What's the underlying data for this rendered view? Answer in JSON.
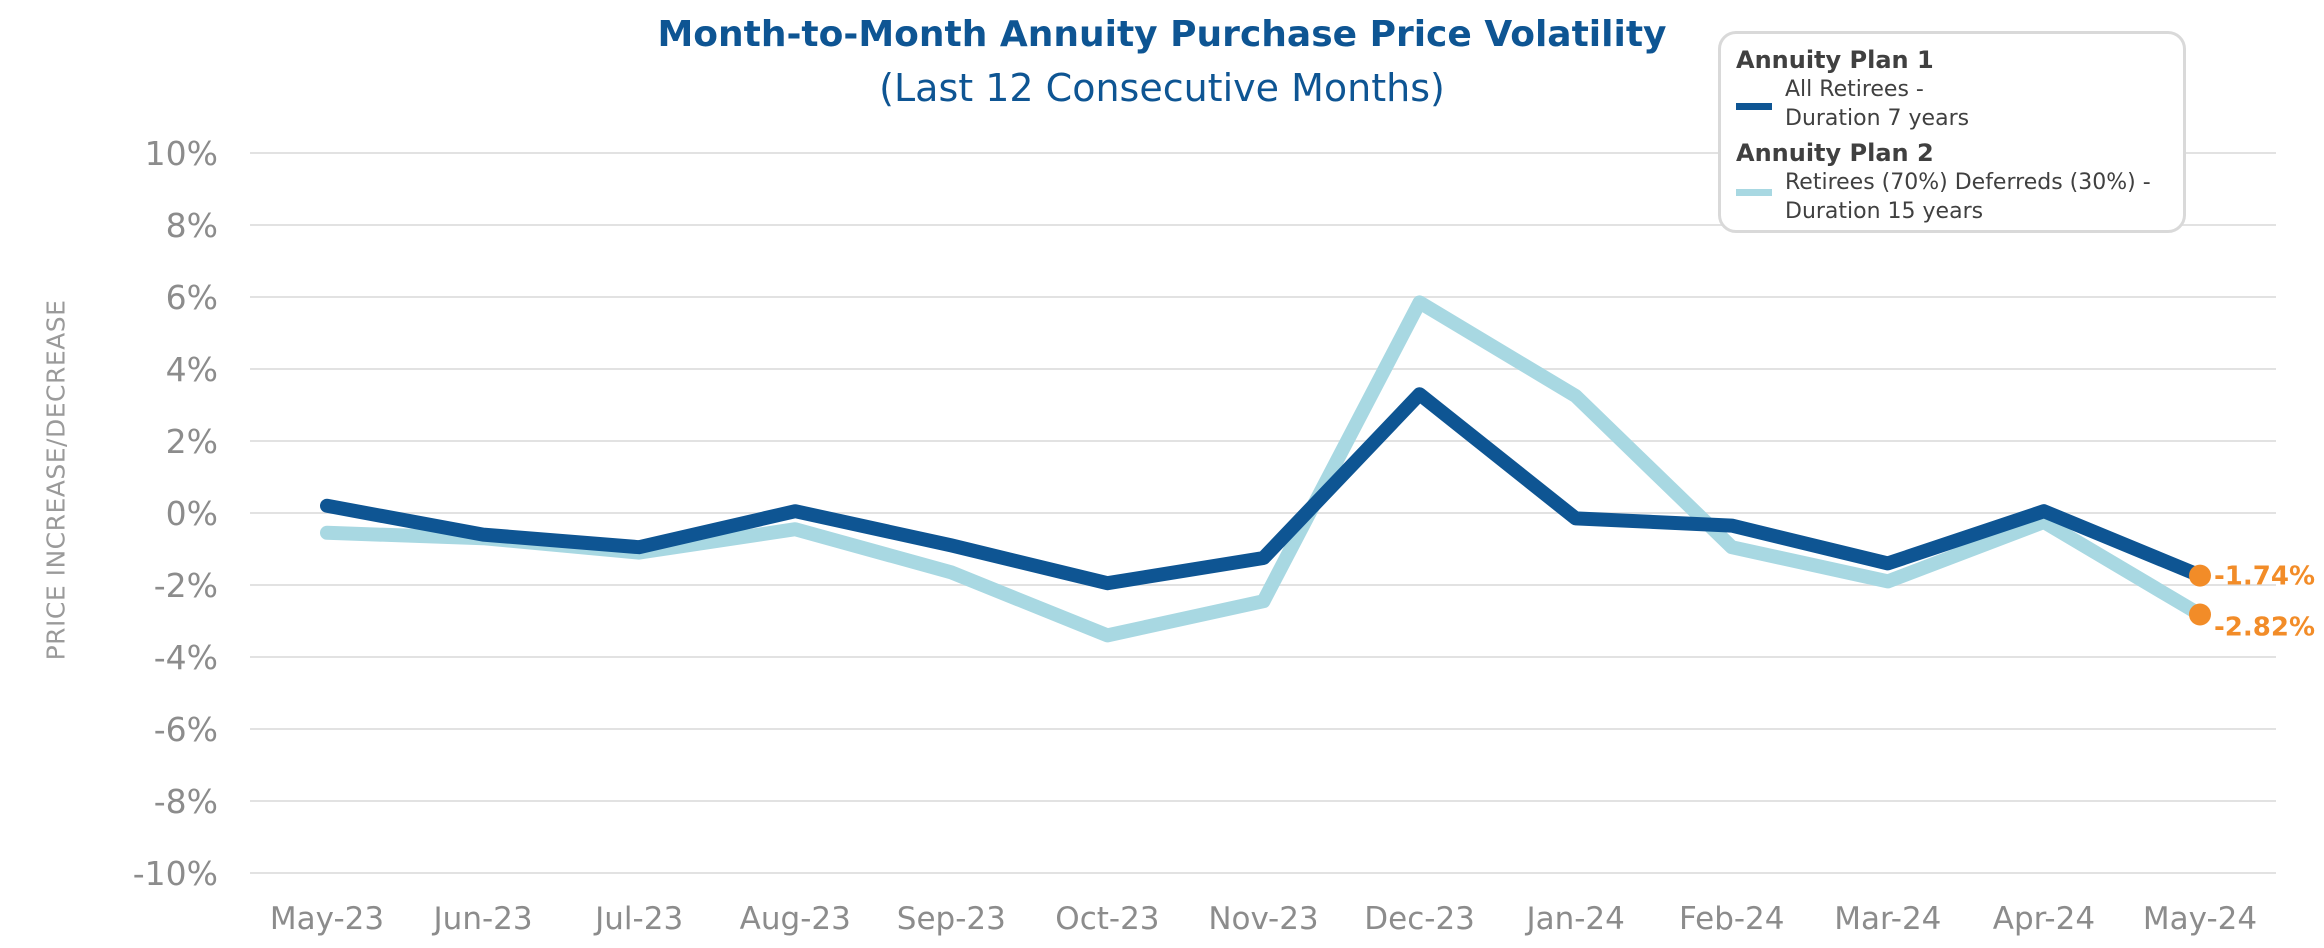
{
  "chart_data": {
    "type": "line",
    "title": "Month-to-Month Annuity Purchase Price Volatility",
    "subtitle": "(Last 12 Consecutive Months)",
    "xlabel": "",
    "ylabel": "PRICE INCREASE/DECREASE",
    "ylim": [
      -10,
      10
    ],
    "yticks": [
      "10%",
      "8%",
      "6%",
      "4%",
      "2%",
      "0%",
      "-2%",
      "-4%",
      "-6%",
      "-8%",
      "-10%"
    ],
    "ytick_values": [
      10,
      8,
      6,
      4,
      2,
      0,
      -2,
      -4,
      -6,
      -8,
      -10
    ],
    "categories": [
      "May-23",
      "Jun-23",
      "Jul-23",
      "Aug-23",
      "Sep-23",
      "Oct-23",
      "Nov-23",
      "Dec-23",
      "Jan-24",
      "Feb-24",
      "Mar-24",
      "Apr-24",
      "May-24"
    ],
    "grid": true,
    "legend_position": "top-right",
    "series": [
      {
        "name": "Annuity Plan 1",
        "label_line1": "All Retirees -",
        "label_line2": "Duration 7 years",
        "color": "#0e5593",
        "values": [
          0.2,
          -0.6,
          -0.95,
          0.05,
          -0.9,
          -1.95,
          -1.25,
          3.3,
          -0.15,
          -0.35,
          -1.4,
          0.05,
          -1.74
        ]
      },
      {
        "name": "Annuity Plan 2",
        "label_line1": "Retirees (70%) Deferreds (30%) -",
        "label_line2": "Duration 15 years",
        "color": "#a8d8e2",
        "values": [
          -0.55,
          -0.7,
          -1.1,
          -0.45,
          -1.65,
          -3.4,
          -2.45,
          5.85,
          3.25,
          -0.95,
          -1.9,
          -0.25,
          -2.82
        ]
      }
    ],
    "end_labels": [
      "-1.74%",
      "-2.82%"
    ],
    "end_marker_color": "#f28c28"
  }
}
